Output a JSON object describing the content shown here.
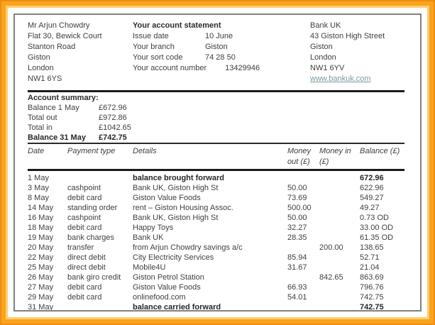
{
  "colors": {
    "frame_orange": "#f9a41c",
    "frame_orange_dark": "#ee8d12",
    "frame_orange_light": "#fccd6d",
    "sheet_border_gray": "#808080",
    "rule_black": "#1c1c1c",
    "text_gray": "#3f3f3f",
    "link_teal": "#7d98a1"
  },
  "recipient": {
    "lines": [
      "Mr Arjun Chowdry",
      "Flat 30, Bewick Court",
      "Stanton Road",
      "Giston",
      "London",
      "NW1 6YS"
    ]
  },
  "statement": {
    "title": "Your account statement",
    "fields": [
      {
        "label": "Issue date",
        "value": "10 June"
      },
      {
        "label": "Your branch",
        "value": "Giston"
      },
      {
        "label": "Your sort code",
        "value": "74 28 50"
      },
      {
        "label": "Your account number",
        "value": "13429946",
        "class": "wide-gap"
      }
    ]
  },
  "bank": {
    "lines": [
      "Bank UK",
      "43 Giston High Street",
      "Giston",
      "London",
      "NW1 6YV"
    ],
    "website": "www.bankuk.com"
  },
  "summary": {
    "title": "Account summary:",
    "rows": [
      {
        "label": "Balance 1 May",
        "value": "£672.96"
      },
      {
        "label": "Total out",
        "value": "£972.86"
      },
      {
        "label": "Total in",
        "value": "£1042.65"
      },
      {
        "label": "Balance 31 May",
        "value": "£742.75",
        "class": "bold"
      }
    ]
  },
  "transactions": {
    "columns": [
      "Date",
      "Payment type",
      "Details",
      "Money out (£)",
      "Money in (£)",
      "Balance (£)"
    ],
    "rows": [
      {
        "date": "1 May",
        "type": "",
        "details": "balance brought forward",
        "out": "",
        "in": "",
        "balance": "672.96",
        "class": "bold"
      },
      {
        "date": "3 May",
        "type": "cashpoint",
        "details": "Bank UK, Giston High St",
        "out": "50.00",
        "in": "",
        "balance": "622.96"
      },
      {
        "date": "8 May",
        "type": "debit card",
        "details": "Giston Value Foods",
        "out": "73.69",
        "in": "",
        "balance": "549.27"
      },
      {
        "date": "14 May",
        "type": "standing order",
        "details": "rent – Giston Housing Assoc.",
        "out": "500.00",
        "in": "",
        "balance": "49.27"
      },
      {
        "date": "16 May",
        "type": "cashpoint",
        "details": "Bank UK, Giston High St",
        "out": "50.00",
        "in": "",
        "balance": "0.73 OD"
      },
      {
        "date": "18 May",
        "type": "debit card",
        "details": "Happy Toys",
        "out": "32.27",
        "in": "",
        "balance": "33.00 OD"
      },
      {
        "date": "19 May",
        "type": "bank charges",
        "details": "Bank UK",
        "out": "28.35",
        "in": "",
        "balance": "61.35 OD"
      },
      {
        "date": "20 May",
        "type": "transfer",
        "details": "from Arjun Chowdry savings a/c",
        "out": "",
        "in": "200.00",
        "balance": "138.65"
      },
      {
        "date": "22 May",
        "type": "direct debit",
        "details": "City Electricity Services",
        "out": "85.94",
        "in": "",
        "balance": "52.71"
      },
      {
        "date": "25 May",
        "type": "direct debit",
        "details": "Mobile4U",
        "out": "31.67",
        "in": "",
        "balance": "21.04"
      },
      {
        "date": "26 May",
        "type": "bank giro credit",
        "details": "Giston Petrol Station",
        "out": "",
        "in": "842.65",
        "balance": "863.69"
      },
      {
        "date": "27 May",
        "type": "debit card",
        "details": "Giston Value Foods",
        "out": "66.93",
        "in": "",
        "balance": "796.76"
      },
      {
        "date": "29 May",
        "type": "debit card",
        "details": "onlinefood.com",
        "out": "54.01",
        "in": "",
        "balance": "742.75"
      },
      {
        "date": "31 May",
        "type": "",
        "details": "balance carried forward",
        "out": "",
        "in": "",
        "balance": "742.75",
        "class": "bold"
      }
    ]
  }
}
